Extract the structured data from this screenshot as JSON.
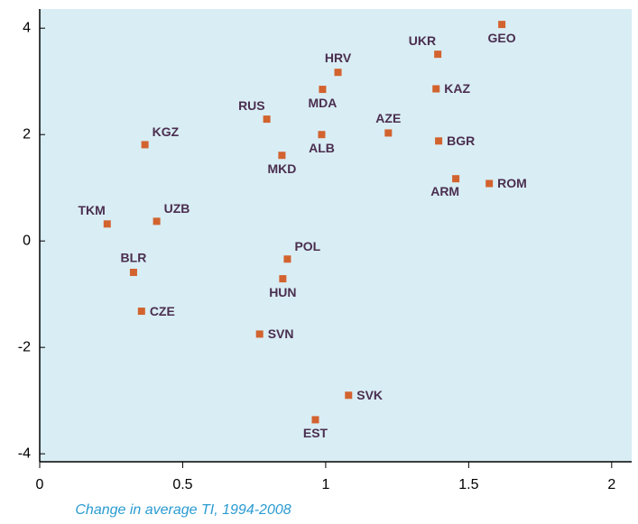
{
  "chart_data": {
    "type": "scatter",
    "x_label": "Change in average TI, 1994-2008",
    "labels": [
      "TKM",
      "KGZ",
      "UZB",
      "BLR",
      "CZE",
      "RUS",
      "MKD",
      "POL",
      "HUN",
      "SVN",
      "MDA",
      "HRV",
      "ALB",
      "AZE",
      "EST",
      "SVK",
      "UKR",
      "KAZ",
      "BGR",
      "ARM",
      "ROM",
      "GEO"
    ],
    "x": [
      0.236,
      0.368,
      0.409,
      0.328,
      0.356,
      0.794,
      0.847,
      0.866,
      0.85,
      0.769,
      0.989,
      1.043,
      0.986,
      1.219,
      0.964,
      1.08,
      1.392,
      1.386,
      1.395,
      1.455,
      1.572,
      1.616
    ],
    "y": [
      0.32,
      1.81,
      0.37,
      -0.59,
      -1.32,
      2.29,
      1.61,
      -0.34,
      -0.71,
      -1.75,
      2.85,
      3.17,
      2.0,
      2.03,
      -3.36,
      -2.9,
      3.51,
      2.86,
      1.88,
      1.17,
      1.08,
      4.07
    ],
    "color": "#d2632f",
    "background": "#d9edf4",
    "xlim": [
      0,
      2.07
    ],
    "ylim": [
      -4.15,
      4.36
    ],
    "xticks": [
      0,
      0.5,
      1,
      1.5,
      2
    ],
    "yticks": [
      -4,
      -2,
      0,
      2,
      4
    ]
  }
}
